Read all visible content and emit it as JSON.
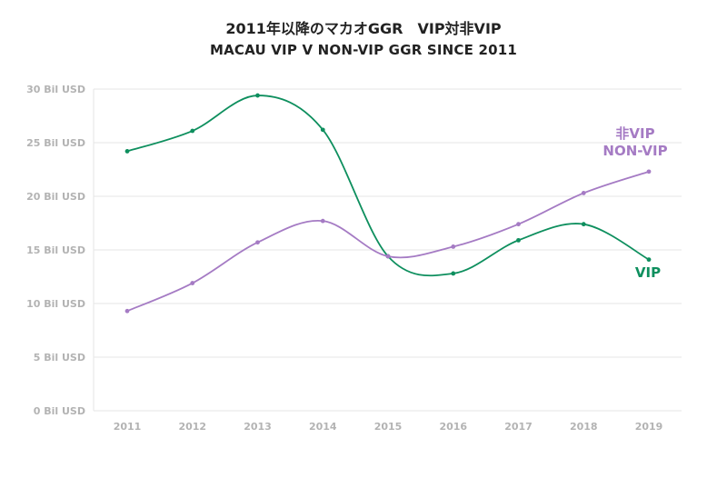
{
  "title": {
    "jp": "2011年以降のマカオGGR　VIP対非VIP",
    "en": "MACAU VIP V NON-VIP GGR SINCE 2011"
  },
  "chart_data": {
    "type": "line",
    "smooth": true,
    "x": [
      "2011",
      "2012",
      "2013",
      "2014",
      "2015",
      "2016",
      "2017",
      "2018",
      "2019"
    ],
    "ylim": [
      0,
      30
    ],
    "yticks": [
      {
        "value": 0,
        "label": "0 Bil USD"
      },
      {
        "value": 5,
        "label": "5 Bil USD"
      },
      {
        "value": 10,
        "label": "10 Bil USD"
      },
      {
        "value": 15,
        "label": "15 Bil USD"
      },
      {
        "value": 20,
        "label": "20 Bil USD"
      },
      {
        "value": 25,
        "label": "25 Bil USD"
      },
      {
        "value": 30,
        "label": "30 Bil USD"
      }
    ],
    "grid": true,
    "series": [
      {
        "id": "vip",
        "labels": [
          "VIP"
        ],
        "color": "#0e8f5e",
        "values": [
          24.2,
          26.1,
          29.4,
          26.2,
          14.4,
          12.8,
          15.9,
          17.4,
          14.1
        ]
      },
      {
        "id": "nonvip",
        "labels": [
          "非VIP",
          "NON-VIP"
        ],
        "color": "#a57bc4",
        "values": [
          9.3,
          11.9,
          15.7,
          17.7,
          14.4,
          15.3,
          17.4,
          20.3,
          22.3
        ]
      }
    ]
  }
}
